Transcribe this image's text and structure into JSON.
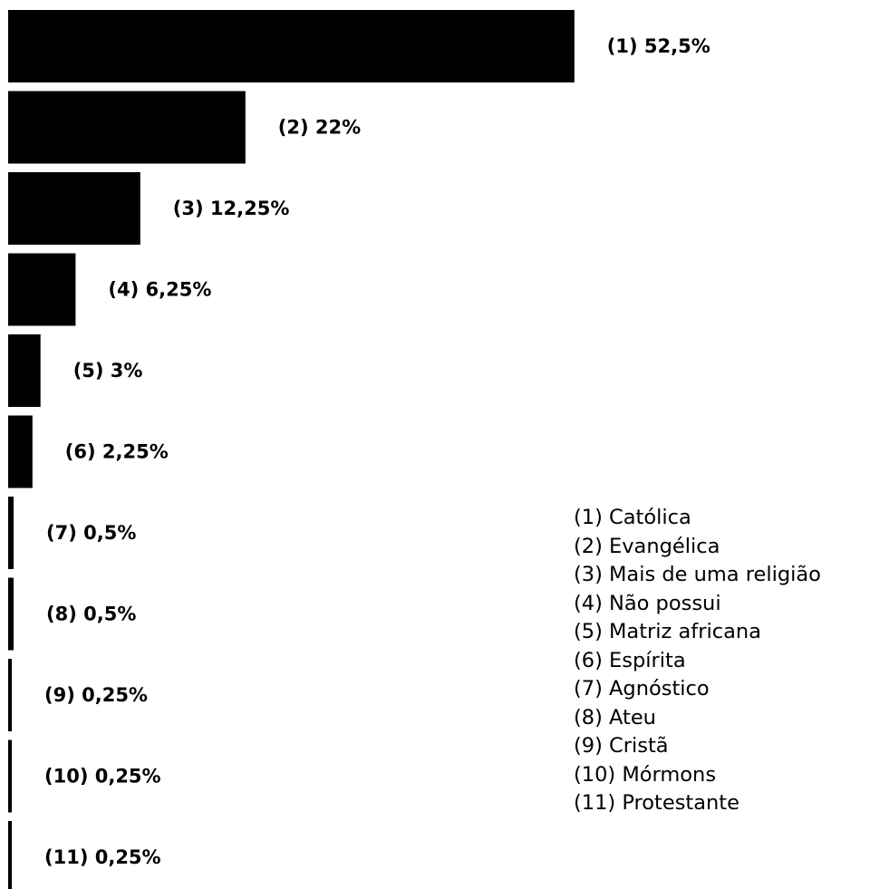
{
  "chart_data": {
    "type": "bar",
    "orientation": "horizontal",
    "categories": [
      "(1)",
      "(2)",
      "(3)",
      "(4)",
      "(5)",
      "(6)",
      "(7)",
      "(8)",
      "(9)",
      "(10)",
      "(11)"
    ],
    "values": [
      52.5,
      22,
      12.25,
      6.25,
      3,
      2.25,
      0.5,
      0.5,
      0.25,
      0.25,
      0.25
    ],
    "data_labels": [
      "(1) 52,5%",
      "(2) 22%",
      "(3) 12,25%",
      "(4) 6,25%",
      "(5) 3%",
      "(6) 2,25%",
      "(7) 0,5%",
      "(8) 0,5%",
      "(9) 0,25%",
      "(10) 0,25%",
      "(11) 0,25%"
    ],
    "legend": [
      "(1) Católica",
      "(2) Evangélica",
      "(3) Mais de uma religião",
      "(4) Não possui",
      "(5) Matriz africana",
      "(6) Espírita",
      "(7) Agnóstico",
      "(8) Ateu",
      "(9) Cristã",
      "(10) Mórmons",
      "(11) Protestante"
    ],
    "legend_position": "bottom-right",
    "bar_color": "#000000",
    "grid": false,
    "title": "",
    "xlabel": "",
    "ylabel": ""
  }
}
